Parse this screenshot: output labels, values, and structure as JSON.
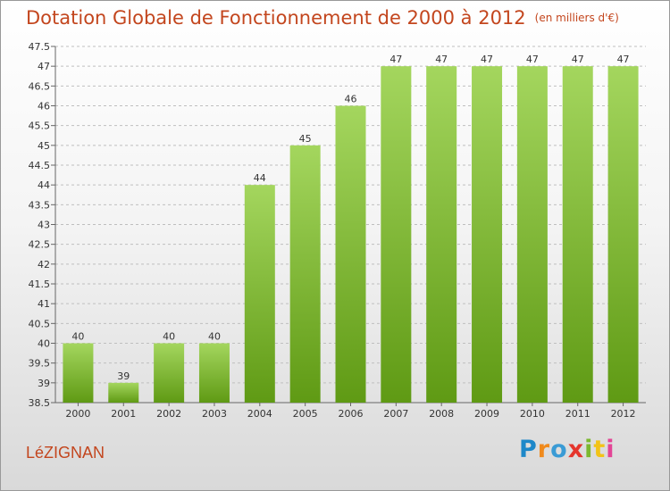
{
  "title": "Dotation Globale de Fonctionnement de 2000 à 2012",
  "subtitle": "(en milliers d'€)",
  "commune": "LéZIGNAN",
  "logo_text": "Proxiti",
  "colors": {
    "title": "#c3461e",
    "bar_light": "#a4d65e",
    "bar_dark": "#5f9a14",
    "grid": "#bfbfbf"
  },
  "chart_data": {
    "type": "bar",
    "categories": [
      "2000",
      "2001",
      "2002",
      "2003",
      "2004",
      "2005",
      "2006",
      "2007",
      "2008",
      "2009",
      "2010",
      "2011",
      "2012"
    ],
    "values": [
      40,
      39,
      40,
      40,
      44,
      45,
      46,
      47,
      47,
      47,
      47,
      47,
      47
    ],
    "data_labels": [
      "40",
      "39",
      "40",
      "40",
      "44",
      "45",
      "46",
      "47",
      "47",
      "47",
      "47",
      "47",
      "47"
    ],
    "ylim": [
      38.5,
      47.5
    ],
    "yticks": [
      "38.5",
      "39",
      "39.5",
      "40",
      "40.5",
      "41",
      "41.5",
      "42",
      "42.5",
      "43",
      "43.5",
      "44",
      "44.5",
      "45",
      "45.5",
      "46",
      "46.5",
      "47",
      "47.5"
    ],
    "grid": true
  }
}
